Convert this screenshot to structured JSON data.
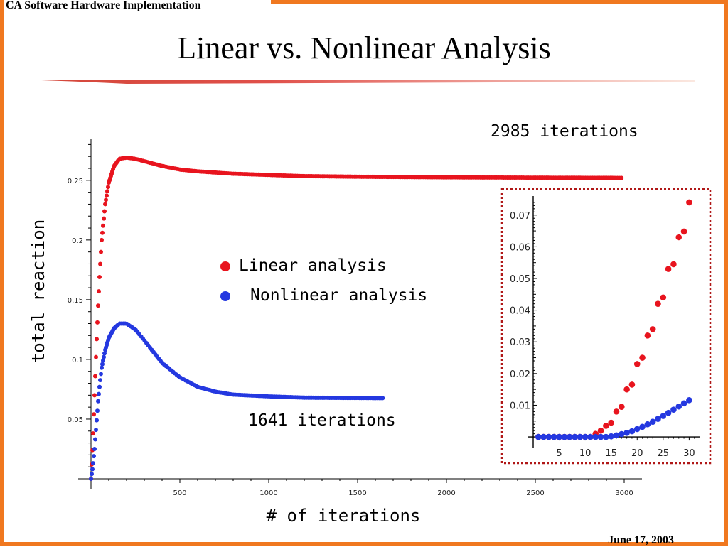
{
  "slide": {
    "header": "CA Software Hardware Implementation",
    "title": "Linear vs. Nonlinear Analysis",
    "date": "June 17, 2003"
  },
  "chart_data": [
    {
      "type": "scatter",
      "xlabel": "# of iterations",
      "ylabel": "total reaction",
      "xlim": [
        0,
        3100
      ],
      "ylim": [
        0,
        0.285
      ],
      "x_ticks": [
        "500",
        "1000",
        "1500",
        "2000",
        "2500",
        "3000"
      ],
      "y_ticks": [
        "0.05",
        "0.1",
        "0.15",
        "0.2",
        "0.25"
      ],
      "legend": {
        "placement": "center",
        "entries": [
          {
            "name": "Linear analysis",
            "color": "#e8141e"
          },
          {
            "name": "Nonlinear analysis",
            "color": "#2438e0"
          }
        ]
      },
      "annotations": [
        "2985 iterations",
        "1641 iterations"
      ],
      "series": [
        {
          "name": "Linear analysis",
          "color": "#e8141e",
          "points": [
            [
              0,
              0
            ],
            [
              10,
              0.03
            ],
            [
              20,
              0.07
            ],
            [
              30,
              0.11
            ],
            [
              40,
              0.145
            ],
            [
              50,
              0.175
            ],
            [
              60,
              0.2
            ],
            [
              80,
              0.23
            ],
            [
              100,
              0.248
            ],
            [
              130,
              0.262
            ],
            [
              160,
              0.268
            ],
            [
              200,
              0.269
            ],
            [
              250,
              0.268
            ],
            [
              300,
              0.266
            ],
            [
              400,
              0.262
            ],
            [
              500,
              0.259
            ],
            [
              600,
              0.2575
            ],
            [
              800,
              0.2555
            ],
            [
              1000,
              0.2545
            ],
            [
              1200,
              0.2535
            ],
            [
              1500,
              0.253
            ],
            [
              2000,
              0.2525
            ],
            [
              2500,
              0.2522
            ],
            [
              2985,
              0.252
            ]
          ]
        },
        {
          "name": "Nonlinear analysis",
          "color": "#2438e0",
          "points": [
            [
              0,
              0
            ],
            [
              10,
              0.01
            ],
            [
              20,
              0.025
            ],
            [
              30,
              0.045
            ],
            [
              40,
              0.065
            ],
            [
              50,
              0.08
            ],
            [
              60,
              0.093
            ],
            [
              80,
              0.108
            ],
            [
              100,
              0.118
            ],
            [
              130,
              0.126
            ],
            [
              160,
              0.13
            ],
            [
              200,
              0.13
            ],
            [
              250,
              0.125
            ],
            [
              300,
              0.116
            ],
            [
              400,
              0.097
            ],
            [
              500,
              0.085
            ],
            [
              600,
              0.077
            ],
            [
              700,
              0.073
            ],
            [
              800,
              0.0705
            ],
            [
              1000,
              0.069
            ],
            [
              1200,
              0.068
            ],
            [
              1400,
              0.0678
            ],
            [
              1641,
              0.0676
            ]
          ]
        }
      ]
    },
    {
      "type": "scatter",
      "xlim": [
        0,
        32
      ],
      "ylim": [
        -0.002,
        0.076
      ],
      "x_ticks": [
        "5",
        "10",
        "15",
        "20",
        "25",
        "30"
      ],
      "y_ticks": [
        "0.01",
        "0.02",
        "0.03",
        "0.04",
        "0.05",
        "0.06",
        "0.07"
      ],
      "series": [
        {
          "name": "Linear analysis",
          "color": "#e8141e",
          "points": [
            [
              1,
              0
            ],
            [
              2,
              0
            ],
            [
              3,
              0
            ],
            [
              4,
              0
            ],
            [
              5,
              0
            ],
            [
              6,
              0
            ],
            [
              7,
              0
            ],
            [
              8,
              0
            ],
            [
              9,
              0
            ],
            [
              10,
              0
            ],
            [
              11,
              0
            ],
            [
              12,
              0.001
            ],
            [
              13,
              0.002
            ],
            [
              14,
              0.0035
            ],
            [
              15,
              0.0045
            ],
            [
              16,
              0.008
            ],
            [
              17,
              0.0095
            ],
            [
              18,
              0.015
            ],
            [
              19,
              0.0165
            ],
            [
              20,
              0.023
            ],
            [
              21,
              0.025
            ],
            [
              22,
              0.032
            ],
            [
              23,
              0.034
            ],
            [
              24,
              0.042
            ],
            [
              25,
              0.044
            ],
            [
              26,
              0.053
            ],
            [
              27,
              0.0545
            ],
            [
              28,
              0.063
            ],
            [
              29,
              0.0648
            ],
            [
              30,
              0.074
            ]
          ]
        },
        {
          "name": "Nonlinear analysis",
          "color": "#2438e0",
          "points": [
            [
              1,
              0
            ],
            [
              2,
              0
            ],
            [
              3,
              0
            ],
            [
              4,
              0
            ],
            [
              5,
              0
            ],
            [
              6,
              0
            ],
            [
              7,
              0
            ],
            [
              8,
              0
            ],
            [
              9,
              0
            ],
            [
              10,
              0
            ],
            [
              11,
              0
            ],
            [
              12,
              0
            ],
            [
              13,
              0
            ],
            [
              14,
              0
            ],
            [
              15,
              0.0002
            ],
            [
              16,
              0.0005
            ],
            [
              17,
              0.0009
            ],
            [
              18,
              0.0013
            ],
            [
              19,
              0.0018
            ],
            [
              20,
              0.0025
            ],
            [
              21,
              0.0032
            ],
            [
              22,
              0.004
            ],
            [
              23,
              0.0048
            ],
            [
              24,
              0.0057
            ],
            [
              25,
              0.0066
            ],
            [
              26,
              0.0076
            ],
            [
              27,
              0.0086
            ],
            [
              28,
              0.0096
            ],
            [
              29,
              0.0106
            ],
            [
              30,
              0.0116
            ]
          ]
        }
      ]
    }
  ]
}
